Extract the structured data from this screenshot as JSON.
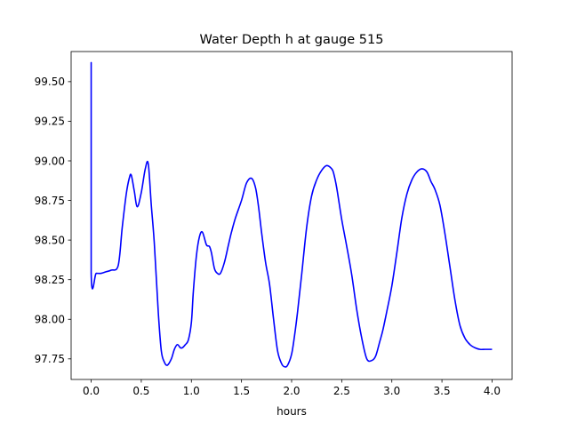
{
  "chart_data": {
    "type": "line",
    "title": "Water Depth h at gauge 515",
    "xlabel": "hours",
    "ylabel": "",
    "xlim": [
      -0.2,
      4.2
    ],
    "ylim": [
      97.62,
      99.69
    ],
    "xticks": [
      0.0,
      0.5,
      1.0,
      1.5,
      2.0,
      2.5,
      3.0,
      3.5,
      4.0
    ],
    "xtick_labels": [
      "0.0",
      "0.5",
      "1.0",
      "1.5",
      "2.0",
      "2.5",
      "3.0",
      "3.5",
      "4.0"
    ],
    "yticks": [
      97.75,
      98.0,
      98.25,
      98.5,
      98.75,
      99.0,
      99.25,
      99.5
    ],
    "ytick_labels": [
      "97.75",
      "98.00",
      "98.25",
      "98.50",
      "98.75",
      "99.00",
      "99.25",
      "99.50"
    ],
    "grid": false,
    "series": [
      {
        "color": "#0000ff",
        "x": [
          0.0,
          0.0,
          0.0,
          0.05,
          0.1,
          0.15,
          0.2,
          0.27,
          0.31,
          0.35,
          0.38,
          0.4,
          0.43,
          0.46,
          0.5,
          0.54,
          0.57,
          0.6,
          0.63,
          0.67,
          0.7,
          0.73,
          0.76,
          0.8,
          0.83,
          0.86,
          0.89,
          0.91,
          0.94,
          0.97,
          1.0,
          1.02,
          1.05,
          1.08,
          1.11,
          1.15,
          1.18,
          1.2,
          1.23,
          1.26,
          1.29,
          1.33,
          1.37,
          1.4,
          1.44,
          1.5,
          1.55,
          1.6,
          1.64,
          1.67,
          1.7,
          1.74,
          1.78,
          1.82,
          1.86,
          1.9,
          1.93,
          1.96,
          2.0,
          2.03,
          2.06,
          2.1,
          2.15,
          2.2,
          2.25,
          2.3,
          2.35,
          2.4,
          2.42,
          2.45,
          2.5,
          2.55,
          2.6,
          2.65,
          2.7,
          2.75,
          2.8,
          2.84,
          2.88,
          2.91,
          2.95,
          3.0,
          3.05,
          3.1,
          3.15,
          3.2,
          3.25,
          3.3,
          3.35,
          3.39,
          3.43,
          3.48,
          3.53,
          3.58,
          3.63,
          3.68,
          3.73,
          3.78,
          3.83,
          3.88,
          3.93,
          4.0
        ],
        "y": [
          98.29,
          99.62,
          98.29,
          98.29,
          98.29,
          98.3,
          98.31,
          98.34,
          98.58,
          98.79,
          98.89,
          98.91,
          98.81,
          98.71,
          98.8,
          98.95,
          98.98,
          98.72,
          98.48,
          98.04,
          97.8,
          97.73,
          97.71,
          97.75,
          97.81,
          97.84,
          97.82,
          97.82,
          97.84,
          97.87,
          97.98,
          98.18,
          98.4,
          98.52,
          98.55,
          98.47,
          98.46,
          98.42,
          98.32,
          98.29,
          98.29,
          98.36,
          98.47,
          98.55,
          98.64,
          98.75,
          98.86,
          98.89,
          98.83,
          98.71,
          98.55,
          98.36,
          98.22,
          98.0,
          97.8,
          97.72,
          97.7,
          97.71,
          97.78,
          97.9,
          98.05,
          98.28,
          98.58,
          98.78,
          98.88,
          98.94,
          98.97,
          98.95,
          98.92,
          98.83,
          98.63,
          98.46,
          98.28,
          98.06,
          97.88,
          97.75,
          97.74,
          97.77,
          97.86,
          97.93,
          98.05,
          98.21,
          98.42,
          98.64,
          98.79,
          98.88,
          98.93,
          98.95,
          98.93,
          98.87,
          98.82,
          98.72,
          98.54,
          98.33,
          98.12,
          97.96,
          97.88,
          97.84,
          97.82,
          97.81,
          97.81,
          97.81
        ]
      }
    ]
  }
}
